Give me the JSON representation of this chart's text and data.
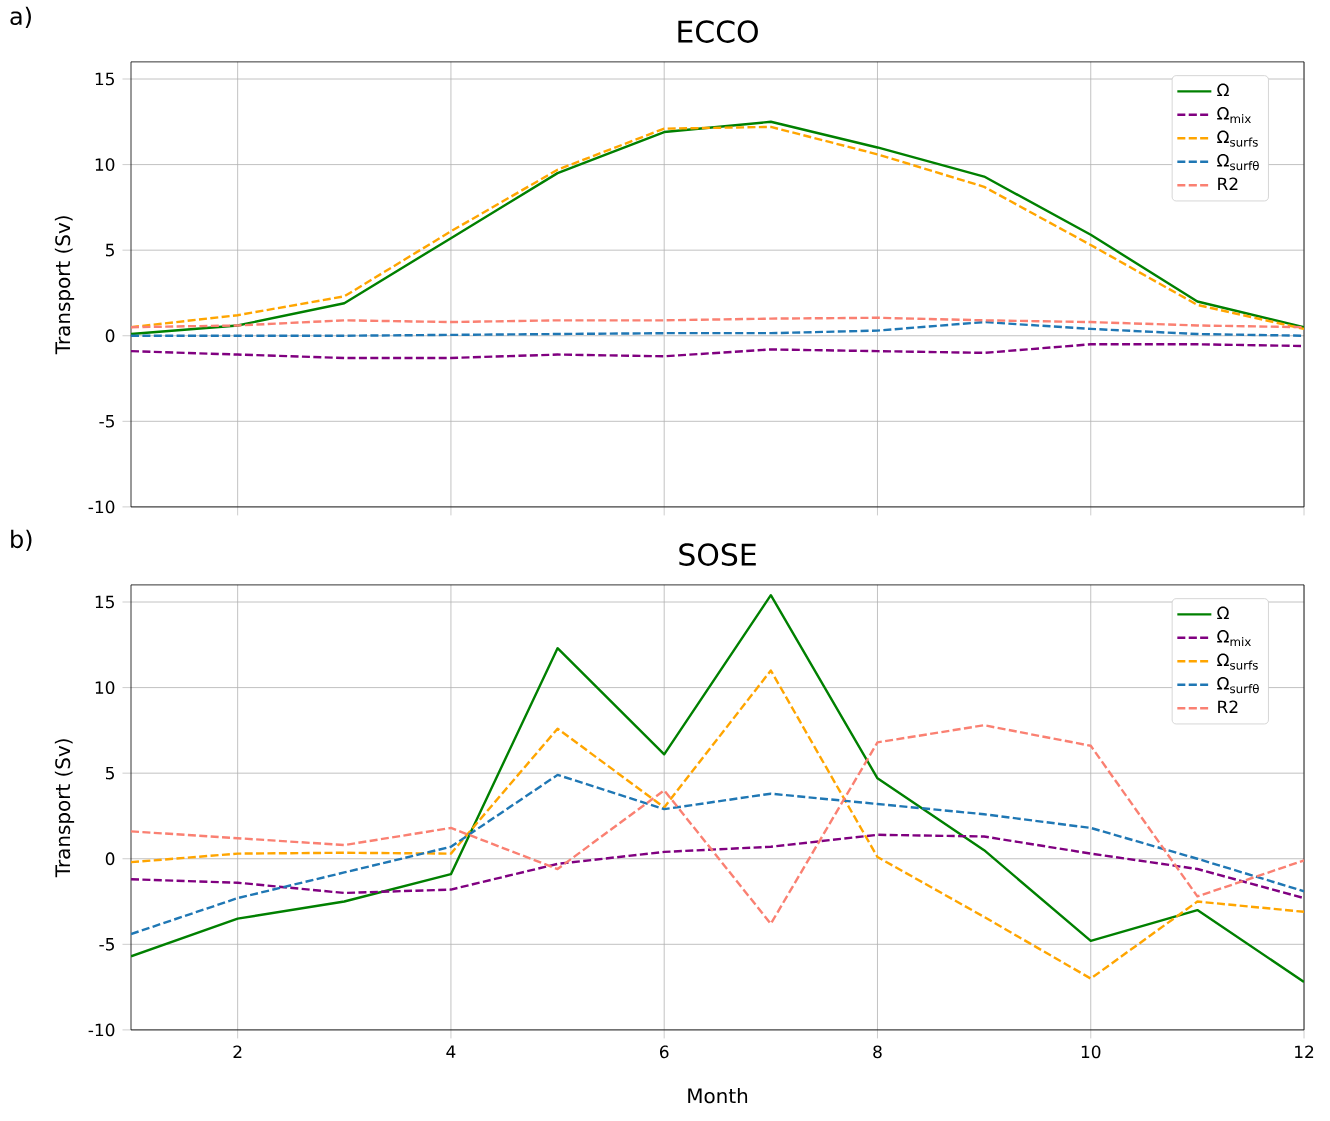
{
  "chart_data": [
    {
      "type": "line",
      "title": "ECCO",
      "ylabel": "Transport (Sv)",
      "annotations": [
        "a)"
      ],
      "x": [
        1,
        2,
        3,
        4,
        5,
        6,
        7,
        8,
        9,
        10,
        11,
        12
      ],
      "xlim": [
        1,
        12
      ],
      "ylim": [
        -10,
        16
      ],
      "xticks": [
        2,
        4,
        6,
        8,
        10,
        12
      ],
      "yticks": [
        -10,
        -5,
        0,
        5,
        10,
        15
      ],
      "grid": true,
      "legend": "top right",
      "tick_labels": "y",
      "series": [
        {
          "name": "Ω",
          "color": "#008000",
          "line_style": "solid",
          "values": [
            0.1,
            0.6,
            1.9,
            5.7,
            9.5,
            11.9,
            12.5,
            11.0,
            9.3,
            5.9,
            2.0,
            0.5
          ]
        },
        {
          "name": "Ω$_{mix}$",
          "color": "#800080",
          "line_style": "dashed",
          "values": [
            -0.9,
            -1.1,
            -1.3,
            -1.3,
            -1.1,
            -1.2,
            -0.8,
            -0.9,
            -1.0,
            -0.5,
            -0.5,
            -0.6
          ]
        },
        {
          "name": "Ω$_{surfs}$",
          "color": "#ffa500",
          "line_style": "dashed",
          "values": [
            0.5,
            1.2,
            2.3,
            6.1,
            9.7,
            12.1,
            12.2,
            10.6,
            8.7,
            5.3,
            1.8,
            0.4
          ]
        },
        {
          "name": "Ω$_{surfθ}$",
          "color": "#1f77b4",
          "line_style": "dashed",
          "values": [
            0.0,
            0.0,
            0.0,
            0.05,
            0.1,
            0.15,
            0.15,
            0.3,
            0.8,
            0.4,
            0.1,
            0.0
          ]
        },
        {
          "name": "R2",
          "color": "#fa8072",
          "line_style": "dashed",
          "values": [
            0.5,
            0.6,
            0.9,
            0.8,
            0.9,
            0.9,
            1.0,
            1.05,
            0.9,
            0.8,
            0.6,
            0.5
          ]
        }
      ]
    },
    {
      "type": "line",
      "title": "SOSE",
      "xlabel": "Month",
      "ylabel": "Transport (Sv)",
      "annotations": [
        "b)"
      ],
      "x": [
        1,
        2,
        3,
        4,
        5,
        6,
        7,
        8,
        9,
        10,
        11,
        12
      ],
      "xlim": [
        1,
        12
      ],
      "ylim": [
        -10,
        16
      ],
      "xticks": [
        2,
        4,
        6,
        8,
        10,
        12
      ],
      "yticks": [
        -10,
        -5,
        0,
        5,
        10,
        15
      ],
      "grid": true,
      "legend": "top right",
      "series": [
        {
          "name": "Ω",
          "color": "#008000",
          "line_style": "solid",
          "values": [
            -5.7,
            -3.5,
            -2.5,
            -0.9,
            12.3,
            6.1,
            15.4,
            4.7,
            0.5,
            -4.8,
            -3.0,
            -7.2
          ]
        },
        {
          "name": "Ω$_{mix}$",
          "color": "#800080",
          "line_style": "dashed",
          "values": [
            -1.2,
            -1.4,
            -2.0,
            -1.8,
            -0.3,
            0.4,
            0.7,
            1.4,
            1.3,
            0.3,
            -0.6,
            -2.3
          ]
        },
        {
          "name": "Ω$_{surfs}$",
          "color": "#ffa500",
          "line_style": "dashed",
          "values": [
            -0.2,
            0.3,
            0.35,
            0.3,
            7.6,
            3.0,
            11.0,
            0.1,
            -3.4,
            -7.0,
            -2.5,
            -3.1
          ]
        },
        {
          "name": "Ω$_{surfθ}$",
          "color": "#1f77b4",
          "line_style": "dashed",
          "values": [
            -4.4,
            -2.3,
            -0.8,
            0.7,
            4.9,
            2.9,
            3.8,
            3.2,
            2.6,
            1.8,
            0.0,
            -1.9
          ]
        },
        {
          "name": "R2",
          "color": "#fa8072",
          "line_style": "dashed",
          "values": [
            1.6,
            1.2,
            0.8,
            1.8,
            -0.6,
            4.0,
            -3.8,
            6.8,
            7.8,
            6.6,
            -2.2,
            -0.1
          ]
        }
      ]
    }
  ]
}
